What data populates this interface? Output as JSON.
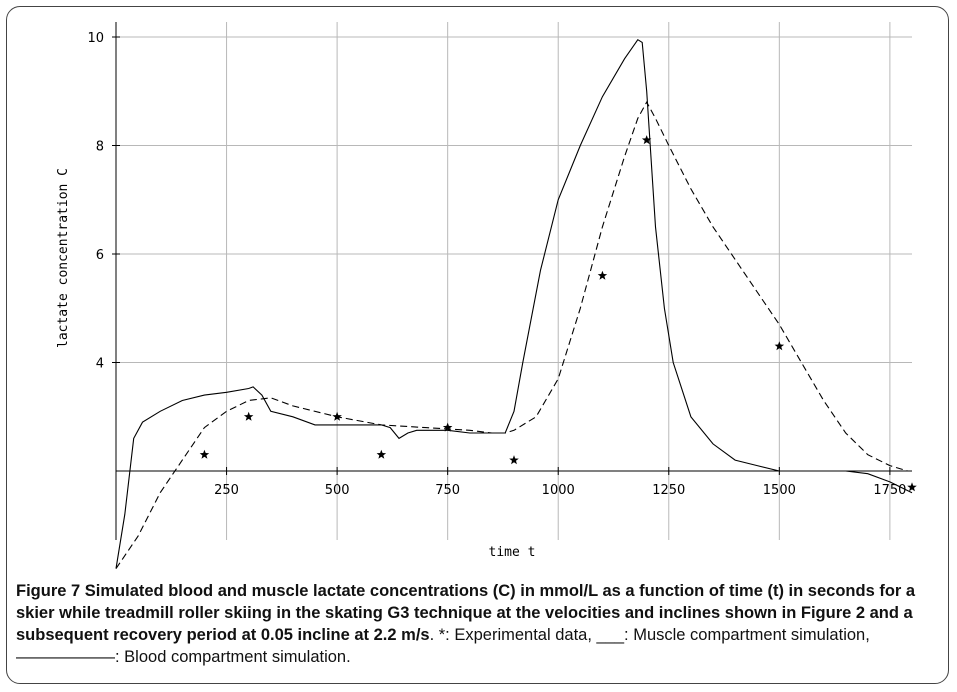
{
  "caption": {
    "figure_label": "Figure 7",
    "bold_text": " Simulated blood and muscle lactate concentrations (C) in mmol/L as a function of time (t) in seconds for a skier while treadmill roller skiing in the skating G3 technique at the velocities and inclines shown in Figure 2 and a subsequent recovery period at 0.05 incline at 2.2 m/s",
    "plain_text": ". *: Experimental data, ___: Muscle compartment simulation, ——————: Blood compartment simulation."
  },
  "chart_data": {
    "type": "line",
    "xlabel": "time t",
    "ylabel": "lactate concentration C",
    "xlim": [
      0,
      1800
    ],
    "ylim": [
      0,
      10
    ],
    "x_ticks": [
      250,
      500,
      750,
      1000,
      1250,
      1500,
      1750
    ],
    "y_ticks": [
      4,
      6,
      8,
      10
    ],
    "grid": true,
    "series": [
      {
        "style": "solid",
        "x": [
          0,
          20,
          40,
          60,
          100,
          150,
          200,
          250,
          300,
          310,
          330,
          350,
          400,
          450,
          500,
          550,
          600,
          620,
          640,
          660,
          680,
          700,
          750,
          800,
          850,
          880,
          900,
          920,
          960,
          1000,
          1050,
          1100,
          1150,
          1180,
          1190,
          1200,
          1220,
          1240,
          1260,
          1300,
          1350,
          1400,
          1450,
          1500,
          1550,
          1600,
          1650,
          1700,
          1750,
          1800
        ],
        "y": [
          0.2,
          1.2,
          2.6,
          2.9,
          3.1,
          3.3,
          3.4,
          3.45,
          3.52,
          3.55,
          3.4,
          3.1,
          3.0,
          2.85,
          2.85,
          2.85,
          2.85,
          2.8,
          2.6,
          2.7,
          2.75,
          2.75,
          2.75,
          2.7,
          2.7,
          2.7,
          3.1,
          4.0,
          5.7,
          7.0,
          8.0,
          8.9,
          9.6,
          9.95,
          9.9,
          9.0,
          6.5,
          5.0,
          4.0,
          3.0,
          2.5,
          2.2,
          2.1,
          2.0,
          2.0,
          2.0,
          2.0,
          1.95,
          1.8,
          1.6
        ]
      },
      {
        "style": "dashed",
        "x": [
          0,
          50,
          100,
          150,
          200,
          250,
          300,
          350,
          400,
          500,
          600,
          700,
          800,
          850,
          880,
          900,
          950,
          1000,
          1050,
          1100,
          1150,
          1180,
          1200,
          1220,
          1250,
          1300,
          1350,
          1400,
          1450,
          1500,
          1550,
          1600,
          1650,
          1700,
          1750,
          1790
        ],
        "y": [
          0.2,
          0.8,
          1.6,
          2.2,
          2.8,
          3.1,
          3.3,
          3.35,
          3.2,
          3.0,
          2.85,
          2.8,
          2.75,
          2.7,
          2.7,
          2.75,
          3.0,
          3.7,
          5.0,
          6.5,
          7.8,
          8.5,
          8.8,
          8.5,
          8.0,
          7.2,
          6.5,
          5.9,
          5.3,
          4.7,
          4.0,
          3.3,
          2.7,
          2.3,
          2.1,
          2.0
        ]
      }
    ],
    "experimental": {
      "x": [
        200,
        300,
        500,
        600,
        750,
        900,
        1100,
        1200,
        1500,
        1800
      ],
      "y": [
        2.3,
        3.0,
        3.0,
        2.3,
        2.8,
        2.2,
        5.6,
        8.1,
        4.3,
        1.7
      ]
    }
  }
}
